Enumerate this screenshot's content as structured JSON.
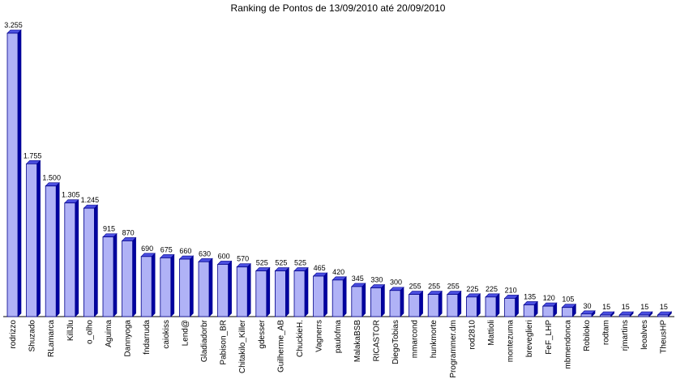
{
  "chart_data": {
    "type": "bar",
    "title": "Ranking de Pontos de 13/09/2010 até 20/09/2010",
    "xlabel": "",
    "ylabel": "",
    "ylim": [
      0,
      3255
    ],
    "grid": false,
    "legend": "none",
    "colors": {
      "bar_front": "#B0B2F6",
      "bar_side": "#0000A0",
      "bar_top": "#4B4FE0",
      "bar_stroke": "#00008B",
      "axis": "#000000"
    },
    "categories": [
      "rodrizzo",
      "Shuzado",
      "RLamarca",
      "KillJlu",
      "o_olho",
      "Aguima",
      "Dannyoga",
      "fndarruda",
      "caiokiss",
      "Lend@",
      "Gladiadorbr",
      "Pabison_BR",
      "Chitakilo_Killer",
      "gdesser",
      "Guilherme_AB",
      "ChuckieH.",
      "Vagnerrs",
      "paulofma",
      "MalakaBSB",
      "RICASTOR",
      "DiegoTobias",
      "mmarcond",
      "hunkmorte",
      "Programmer.dm",
      "rod2810",
      "Mattioli",
      "montezuma",
      "breveglieri",
      "FeF_LHP",
      "mbmendonca",
      "Robiloko",
      "rodtam",
      "rjmartins",
      "leoalves",
      "TheusHP"
    ],
    "values": [
      3255,
      1755,
      1500,
      1305,
      1245,
      915,
      870,
      690,
      675,
      660,
      630,
      600,
      570,
      525,
      525,
      525,
      465,
      420,
      345,
      330,
      300,
      255,
      255,
      255,
      225,
      225,
      210,
      135,
      120,
      105,
      30,
      15,
      15,
      15,
      15
    ],
    "value_labels": [
      "3.255",
      "1.755",
      "1.500",
      "1.305",
      "1.245",
      "915",
      "870",
      "690",
      "675",
      "660",
      "630",
      "600",
      "570",
      "525",
      "525",
      "525",
      "465",
      "420",
      "345",
      "330",
      "300",
      "255",
      "255",
      "255",
      "225",
      "225",
      "210",
      "135",
      "120",
      "105",
      "30",
      "15",
      "15",
      "15",
      "15"
    ]
  }
}
